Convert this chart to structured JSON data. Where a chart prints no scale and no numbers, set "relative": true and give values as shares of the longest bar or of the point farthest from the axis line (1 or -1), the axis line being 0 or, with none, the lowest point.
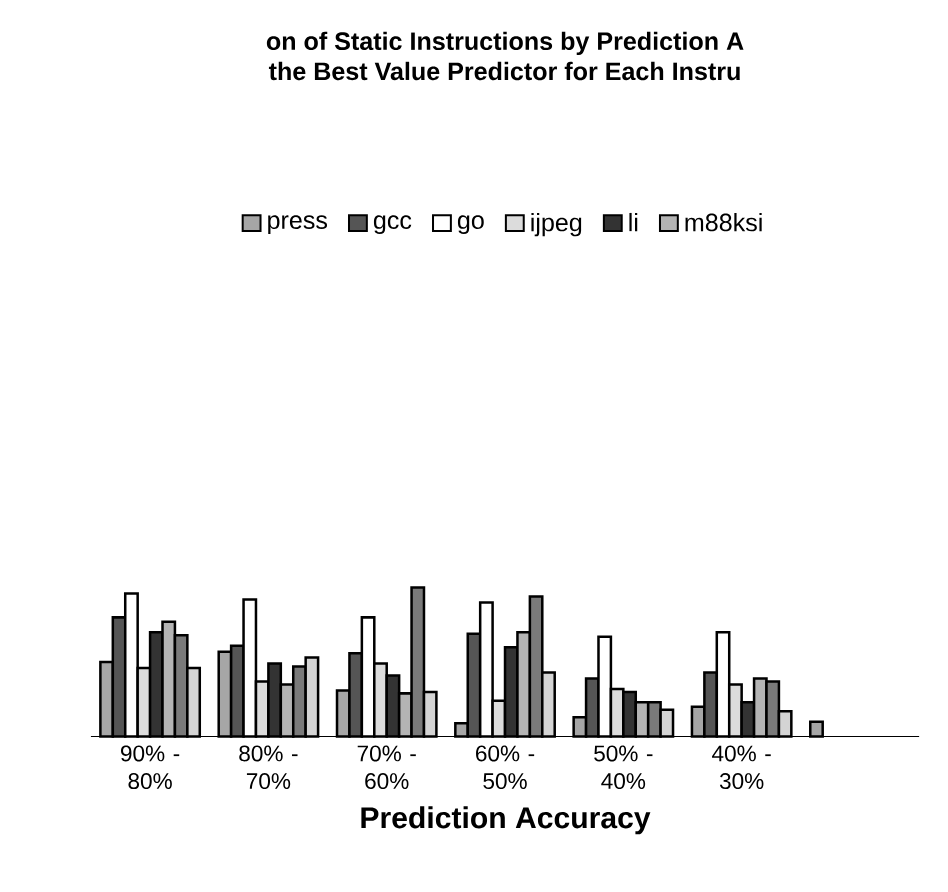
{
  "chart_data": {
    "type": "bar",
    "title": "on of Static Instructions by Prediction A",
    "subtitle": "the Best Value Predictor for Each Instru",
    "xlabel": "Prediction Accuracy",
    "categories": [
      "90% - 80%",
      "80% - 70%",
      "70% - 60%",
      "60% - 50%",
      "50% - 40%",
      "40% - 30%",
      null
    ],
    "relative": true,
    "legend": "top",
    "series": [
      {
        "name": "press",
        "color": "#a6a6a6",
        "values": [
          0.5,
          0.57,
          0.31,
          0.09,
          0.13,
          0.2,
          0.1
        ]
      },
      {
        "name": "gcc",
        "color": "#555555",
        "values": [
          0.8,
          0.61,
          0.56,
          0.69,
          0.39,
          0.43,
          null
        ]
      },
      {
        "name": "go",
        "color": "#ffffff",
        "values": [
          0.96,
          0.92,
          0.8,
          0.9,
          0.67,
          0.7,
          null
        ]
      },
      {
        "name": "ijpeg",
        "color": "#dcdcdc",
        "values": [
          0.46,
          0.37,
          0.49,
          0.24,
          0.32,
          0.35,
          null
        ]
      },
      {
        "name": "li",
        "color": "#333333",
        "values": [
          0.7,
          0.49,
          0.41,
          0.6,
          0.3,
          0.23,
          null
        ]
      },
      {
        "name": "m88ksi",
        "color": "#b4b4b4",
        "values": [
          0.77,
          0.35,
          0.29,
          0.7,
          0.23,
          0.39,
          null
        ]
      },
      {
        "color": "#7a7a7a",
        "values": [
          0.68,
          0.47,
          1.0,
          0.94,
          0.23,
          0.37,
          null
        ]
      },
      {
        "color": "#d4d4d4",
        "values": [
          0.46,
          0.53,
          0.3,
          0.43,
          0.18,
          0.17,
          null
        ]
      }
    ]
  }
}
